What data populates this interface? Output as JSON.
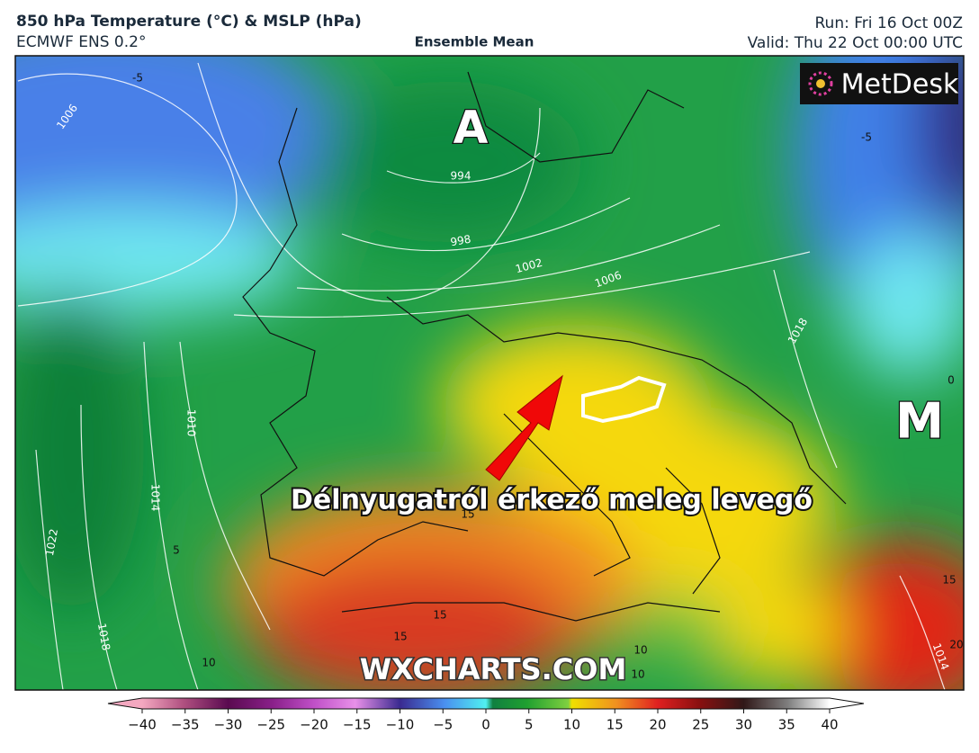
{
  "header": {
    "title": "850 hPa Temperature (°C) & MSLP (hPa)",
    "model": "ECMWF ENS 0.2°",
    "product": "Ensemble Mean",
    "run": "Run: Fri 16 Oct 00Z",
    "valid": "Valid: Thu 22 Oct 00:00 UTC"
  },
  "map": {
    "low_label": "A",
    "high_label": "M",
    "annotation": "Délnyugatról érkező meleg levegő",
    "watermark": "WXCHARTS.COM",
    "logo": "MetDesk",
    "pressure_labels": [
      "1006",
      "994",
      "998",
      "1002",
      "1006",
      "1010",
      "1014",
      "1018",
      "1022",
      "1018",
      "1014"
    ],
    "temperature_labels": [
      "-5",
      "-5",
      "0",
      "5",
      "10",
      "10",
      "10",
      "15",
      "15",
      "15",
      "15",
      "20"
    ]
  },
  "colorbar": {
    "ticks": [
      {
        "value": -40,
        "label": "−40"
      },
      {
        "value": -35,
        "label": "−35"
      },
      {
        "value": -30,
        "label": "−30"
      },
      {
        "value": -25,
        "label": "−25"
      },
      {
        "value": -20,
        "label": "−20"
      },
      {
        "value": -15,
        "label": "−15"
      },
      {
        "value": -10,
        "label": "−10"
      },
      {
        "value": -5,
        "label": "−5"
      },
      0,
      5,
      10,
      15,
      20,
      25,
      30,
      35,
      40
    ]
  }
}
